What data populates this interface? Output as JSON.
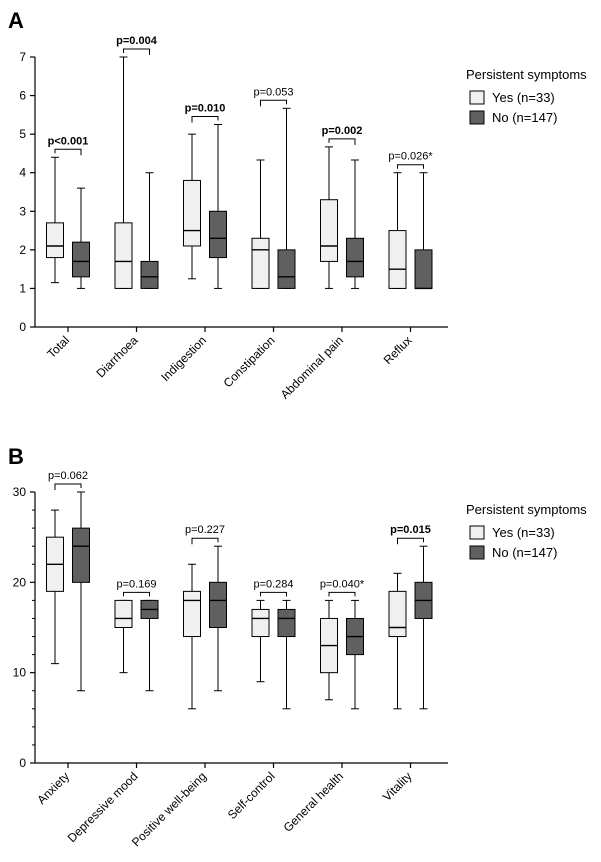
{
  "colors": {
    "yes_fill": "#f0f0f0",
    "no_fill": "#606060",
    "stroke": "#000000"
  },
  "chart_data": [
    {
      "type": "box",
      "panel_label": "A",
      "ylim": [
        0,
        7
      ],
      "yticks": [
        0,
        1,
        2,
        3,
        4,
        5,
        6,
        7
      ],
      "legend": {
        "title": "Persistent symptoms",
        "placement": "right",
        "entries": [
          "Yes (n=33)",
          "No (n=147)"
        ]
      },
      "categories": [
        {
          "name": "Total",
          "pvalue": "p<0.001",
          "bold": true,
          "yes": {
            "min": 1.15,
            "q1": 1.8,
            "median": 2.1,
            "q3": 2.7,
            "max": 4.4
          },
          "no": {
            "min": 1.0,
            "q1": 1.3,
            "median": 1.7,
            "q3": 2.2,
            "max": 3.6
          }
        },
        {
          "name": "Diarrhoea",
          "pvalue": "p=0.004",
          "bold": true,
          "yes": {
            "min": 1.0,
            "q1": 1.0,
            "median": 1.7,
            "q3": 2.7,
            "max": 7.0
          },
          "no": {
            "min": 1.0,
            "q1": 1.0,
            "median": 1.3,
            "q3": 1.7,
            "max": 4.0
          }
        },
        {
          "name": "Indigestion",
          "pvalue": "p=0.010",
          "bold": true,
          "yes": {
            "min": 1.25,
            "q1": 2.1,
            "median": 2.5,
            "q3": 3.8,
            "max": 5.0
          },
          "no": {
            "min": 1.0,
            "q1": 1.8,
            "median": 2.3,
            "q3": 3.0,
            "max": 5.25
          }
        },
        {
          "name": "Constipation",
          "pvalue": "p=0.053",
          "bold": false,
          "yes": {
            "min": 1.0,
            "q1": 1.0,
            "median": 2.0,
            "q3": 2.3,
            "max": 4.33
          },
          "no": {
            "min": 1.0,
            "q1": 1.0,
            "median": 1.3,
            "q3": 2.0,
            "max": 5.67
          }
        },
        {
          "name": "Abdominal pain",
          "pvalue": "p=0.002",
          "bold": true,
          "yes": {
            "min": 1.0,
            "q1": 1.7,
            "median": 2.1,
            "q3": 3.3,
            "max": 4.67
          },
          "no": {
            "min": 1.0,
            "q1": 1.3,
            "median": 1.7,
            "q3": 2.3,
            "max": 4.33
          }
        },
        {
          "name": "Reflux",
          "pvalue": "p=0.026*",
          "bold": false,
          "yes": {
            "min": 1.0,
            "q1": 1.0,
            "median": 1.5,
            "q3": 2.5,
            "max": 4.0
          },
          "no": {
            "min": 1.0,
            "q1": 1.0,
            "median": 1.0,
            "q3": 2.0,
            "max": 4.0
          }
        }
      ]
    },
    {
      "type": "box",
      "panel_label": "B",
      "ylim": [
        0,
        30
      ],
      "yticks": [
        0,
        10,
        20,
        30
      ],
      "legend": {
        "title": "Persistent symptoms",
        "placement": "right",
        "entries": [
          "Yes (n=33)",
          "No (n=147)"
        ]
      },
      "categories": [
        {
          "name": "Anxiety",
          "pvalue": "p=0.062",
          "bold": false,
          "yes": {
            "min": 11,
            "q1": 19,
            "median": 22,
            "q3": 25,
            "max": 28
          },
          "no": {
            "min": 8,
            "q1": 20,
            "median": 24,
            "q3": 26,
            "max": 30
          }
        },
        {
          "name": "Depressive mood",
          "pvalue": "p=0.169",
          "bold": false,
          "yes": {
            "min": 10,
            "q1": 15,
            "median": 16,
            "q3": 18,
            "max": 18
          },
          "no": {
            "min": 8,
            "q1": 16,
            "median": 17,
            "q3": 18,
            "max": 18
          }
        },
        {
          "name": "Positive well-being",
          "pvalue": "p=0.227",
          "bold": false,
          "yes": {
            "min": 6,
            "q1": 14,
            "median": 18,
            "q3": 19,
            "max": 22
          },
          "no": {
            "min": 8,
            "q1": 15,
            "median": 18,
            "q3": 20,
            "max": 24
          }
        },
        {
          "name": "Self-control",
          "pvalue": "p=0.284",
          "bold": false,
          "yes": {
            "min": 9,
            "q1": 14,
            "median": 16,
            "q3": 17,
            "max": 18
          },
          "no": {
            "min": 6,
            "q1": 14,
            "median": 16,
            "q3": 17,
            "max": 18
          }
        },
        {
          "name": "General health",
          "pvalue": "p=0.040*",
          "bold": false,
          "yes": {
            "min": 7,
            "q1": 10,
            "median": 13,
            "q3": 16,
            "max": 18
          },
          "no": {
            "min": 6,
            "q1": 12,
            "median": 14,
            "q3": 16,
            "max": 18
          }
        },
        {
          "name": "Vitality",
          "pvalue": "p=0.015",
          "bold": true,
          "yes": {
            "min": 6,
            "q1": 14,
            "median": 15,
            "q3": 19,
            "max": 21
          },
          "no": {
            "min": 6,
            "q1": 16,
            "median": 18,
            "q3": 20,
            "max": 24
          }
        }
      ]
    }
  ]
}
